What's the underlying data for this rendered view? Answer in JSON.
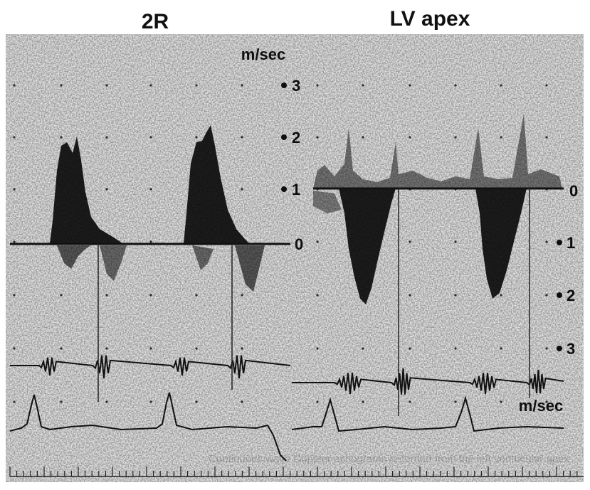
{
  "panels": [
    {
      "title": "2R",
      "unit": "m/sec",
      "scale_labels": [
        "3",
        "2",
        "1",
        "0"
      ]
    },
    {
      "title": "LV apex",
      "unit": "m/sec",
      "scale_labels": [
        "0",
        "1",
        "2",
        "3"
      ]
    }
  ],
  "caption_fragment": "Continuous wave Doppler echograms recorded from the left ventricular apex",
  "colors": {
    "background": "#ffffff",
    "paper": "#ededed",
    "trace": "#111111",
    "signal": "#222222"
  }
}
